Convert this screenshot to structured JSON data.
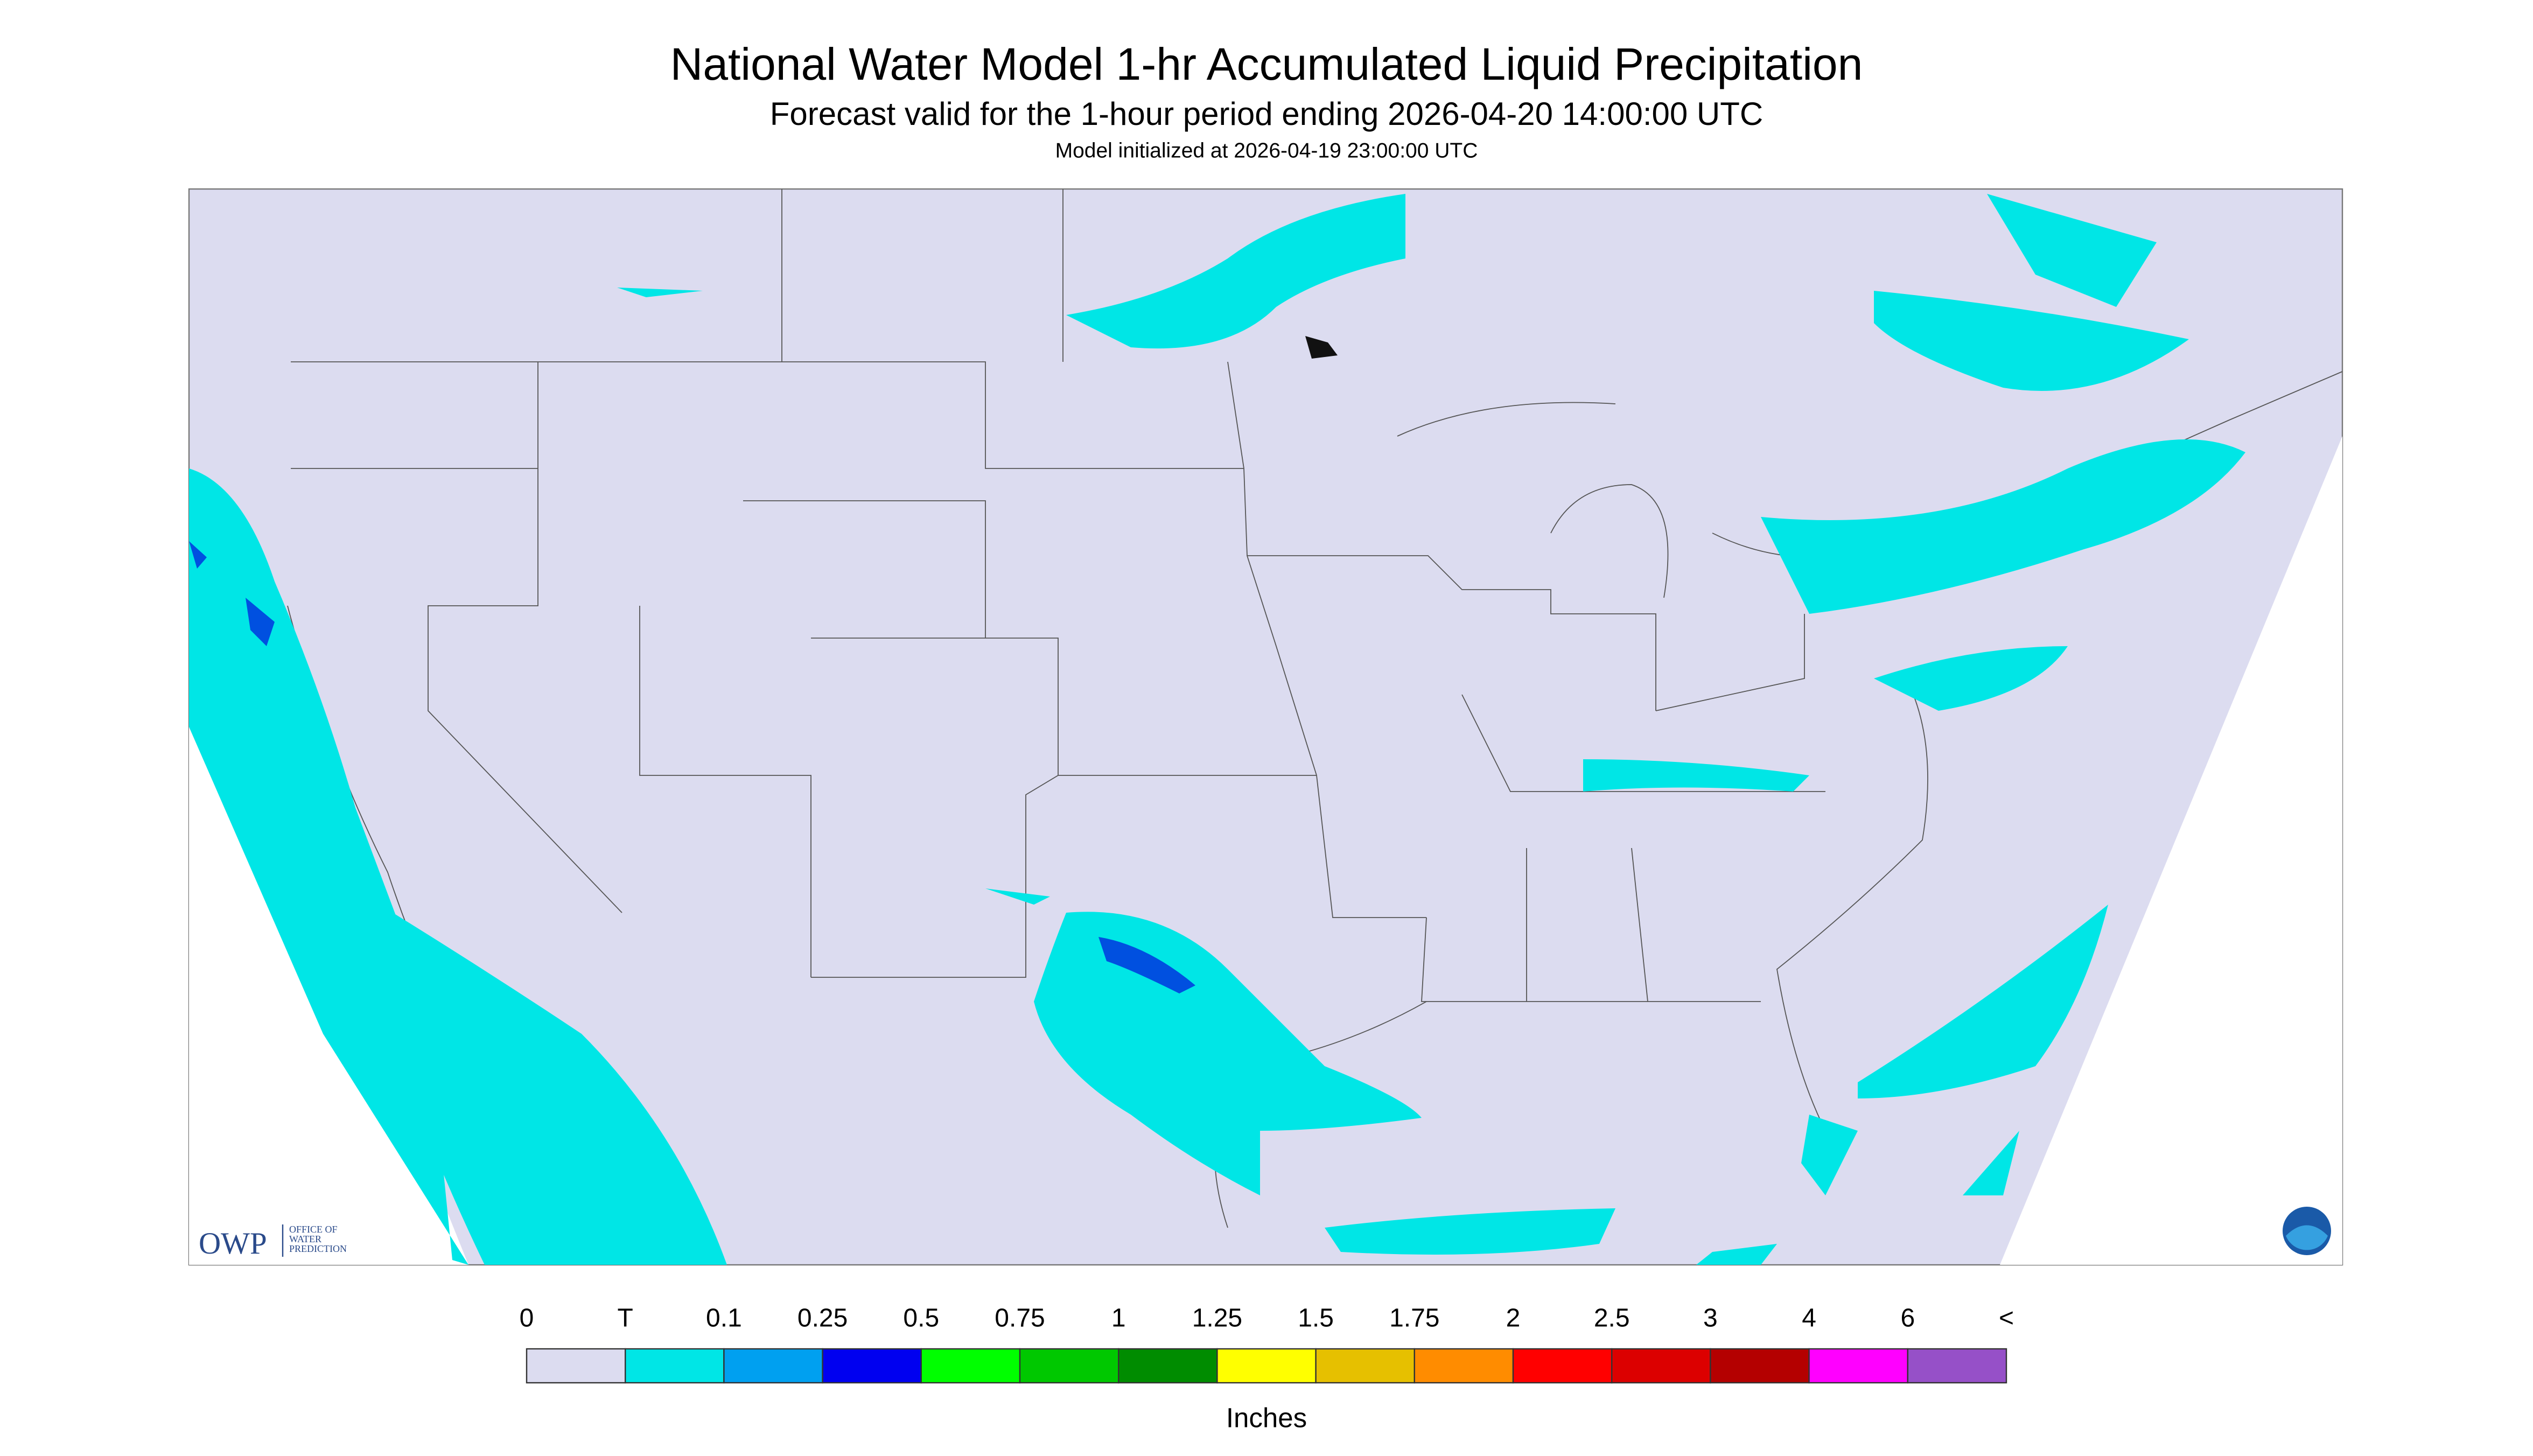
{
  "header": {
    "title": "National Water Model 1-hr Accumulated Liquid Precipitation",
    "subtitle": "Forecast valid for the 1-hour period ending 2026-04-20 14:00:00 UTC",
    "note": "Model initialized at 2026-04-19 23:00:00 UTC"
  },
  "legend": {
    "labels": [
      "0",
      "T",
      "0.1",
      "0.25",
      "0.5",
      "0.75",
      "1",
      "1.25",
      "1.5",
      "1.75",
      "2",
      "2.5",
      "3",
      "4",
      "6",
      "<"
    ],
    "colors": [
      "#dcdcf0",
      "#00e6e6",
      "#00a0f0",
      "#0000f0",
      "#00ff00",
      "#00c800",
      "#008c00",
      "#ffff00",
      "#e6c000",
      "#ff8c00",
      "#ff0000",
      "#dc0000",
      "#b40000",
      "#ff00ff",
      "#9650c8"
    ],
    "unit": "Inches"
  },
  "logo": {
    "short": "OWP",
    "lines": [
      "OFFICE OF",
      "WATER",
      "PREDICTION"
    ]
  }
}
